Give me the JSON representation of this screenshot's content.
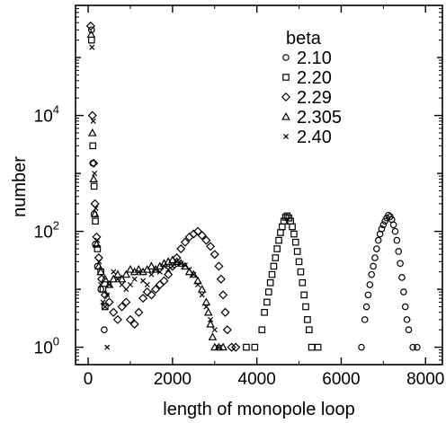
{
  "chart_data": {
    "type": "scatter",
    "title": "",
    "xlabel": "length of monopole loop",
    "ylabel": "number",
    "xlim": [
      -300,
      8400
    ],
    "ylim_log10": [
      -0.3,
      5.9
    ],
    "y_scale": "log",
    "x_ticks": [
      "0",
      "2000",
      "4000",
      "6000",
      "8000"
    ],
    "x_tick_values": [
      0,
      2000,
      4000,
      6000,
      8000
    ],
    "y_ticks": [
      {
        "base": "10",
        "exp": "0",
        "value": 1
      },
      {
        "base": "10",
        "exp": "2",
        "value": 100
      },
      {
        "base": "10",
        "exp": "4",
        "value": 10000
      }
    ],
    "legend": {
      "title": "beta",
      "position": "top-right"
    },
    "series": [
      {
        "name": "2.10",
        "marker": "circle",
        "points": [
          [
            80,
            300000
          ],
          [
            110,
            1500
          ],
          [
            140,
            200
          ],
          [
            170,
            60
          ],
          [
            220,
            25
          ],
          [
            300,
            10
          ],
          [
            380,
            2
          ],
          [
            6480,
            1
          ],
          [
            6560,
            3
          ],
          [
            6600,
            5
          ],
          [
            6640,
            8
          ],
          [
            6680,
            12
          ],
          [
            6720,
            18
          ],
          [
            6760,
            25
          ],
          [
            6800,
            35
          ],
          [
            6840,
            50
          ],
          [
            6880,
            70
          ],
          [
            6920,
            90
          ],
          [
            6960,
            110
          ],
          [
            7000,
            130
          ],
          [
            7040,
            150
          ],
          [
            7080,
            170
          ],
          [
            7120,
            190
          ],
          [
            7160,
            180
          ],
          [
            7200,
            160
          ],
          [
            7240,
            130
          ],
          [
            7280,
            100
          ],
          [
            7320,
            70
          ],
          [
            7360,
            45
          ],
          [
            7400,
            28
          ],
          [
            7440,
            16
          ],
          [
            7480,
            9
          ],
          [
            7520,
            5
          ],
          [
            7560,
            3
          ],
          [
            7600,
            2
          ],
          [
            7700,
            1
          ],
          [
            7800,
            1
          ]
        ]
      },
      {
        "name": "2.20",
        "marker": "square",
        "points": [
          [
            80,
            200000
          ],
          [
            110,
            3000
          ],
          [
            140,
            600
          ],
          [
            170,
            150
          ],
          [
            220,
            50
          ],
          [
            300,
            20
          ],
          [
            350,
            10
          ],
          [
            400,
            5
          ],
          [
            3750,
            1
          ],
          [
            3950,
            1
          ],
          [
            4120,
            2
          ],
          [
            4180,
            4
          ],
          [
            4240,
            6
          ],
          [
            4280,
            9
          ],
          [
            4320,
            13
          ],
          [
            4360,
            18
          ],
          [
            4400,
            25
          ],
          [
            4440,
            35
          ],
          [
            4480,
            50
          ],
          [
            4520,
            70
          ],
          [
            4560,
            95
          ],
          [
            4600,
            120
          ],
          [
            4640,
            150
          ],
          [
            4680,
            175
          ],
          [
            4720,
            185
          ],
          [
            4760,
            170
          ],
          [
            4800,
            150
          ],
          [
            4840,
            120
          ],
          [
            4880,
            90
          ],
          [
            4920,
            65
          ],
          [
            4960,
            45
          ],
          [
            5000,
            30
          ],
          [
            5040,
            20
          ],
          [
            5080,
            13
          ],
          [
            5120,
            8
          ],
          [
            5160,
            5
          ],
          [
            5200,
            3
          ],
          [
            5240,
            2
          ],
          [
            5300,
            1
          ],
          [
            5450,
            1
          ]
        ]
      },
      {
        "name": "2.29",
        "marker": "diamond",
        "points": [
          [
            60,
            350000
          ],
          [
            100,
            10000
          ],
          [
            130,
            1500
          ],
          [
            160,
            300
          ],
          [
            200,
            80
          ],
          [
            250,
            35
          ],
          [
            320,
            15
          ],
          [
            400,
            8
          ],
          [
            500,
            6
          ],
          [
            600,
            4
          ],
          [
            700,
            3
          ],
          [
            800,
            5
          ],
          [
            900,
            6
          ],
          [
            1000,
            3
          ],
          [
            1100,
            2.5
          ],
          [
            1200,
            4
          ],
          [
            1300,
            7
          ],
          [
            1400,
            9
          ],
          [
            1500,
            8
          ],
          [
            1600,
            10
          ],
          [
            1700,
            12
          ],
          [
            1800,
            14
          ],
          [
            1900,
            18
          ],
          [
            2000,
            25
          ],
          [
            2100,
            35
          ],
          [
            2200,
            50
          ],
          [
            2300,
            65
          ],
          [
            2400,
            80
          ],
          [
            2500,
            90
          ],
          [
            2600,
            100
          ],
          [
            2700,
            85
          ],
          [
            2800,
            70
          ],
          [
            2900,
            55
          ],
          [
            3000,
            40
          ],
          [
            3100,
            25
          ],
          [
            3150,
            15
          ],
          [
            3200,
            8
          ],
          [
            3250,
            4
          ],
          [
            3300,
            2
          ],
          [
            3400,
            1
          ],
          [
            3500,
            1
          ]
        ]
      },
      {
        "name": "2.305",
        "marker": "triangle",
        "points": [
          [
            70,
            250000
          ],
          [
            100,
            5000
          ],
          [
            130,
            800
          ],
          [
            160,
            200
          ],
          [
            200,
            60
          ],
          [
            250,
            25
          ],
          [
            300,
            20
          ],
          [
            400,
            15
          ],
          [
            500,
            12
          ],
          [
            600,
            15
          ],
          [
            700,
            18
          ],
          [
            800,
            15
          ],
          [
            900,
            18
          ],
          [
            1000,
            22
          ],
          [
            1100,
            20
          ],
          [
            1200,
            22
          ],
          [
            1300,
            20
          ],
          [
            1400,
            22
          ],
          [
            1500,
            25
          ],
          [
            1600,
            22
          ],
          [
            1700,
            25
          ],
          [
            1800,
            28
          ],
          [
            1900,
            30
          ],
          [
            2000,
            32
          ],
          [
            2100,
            30
          ],
          [
            2200,
            28
          ],
          [
            2300,
            25
          ],
          [
            2400,
            20
          ],
          [
            2500,
            18
          ],
          [
            2600,
            14
          ],
          [
            2700,
            10
          ],
          [
            2800,
            6
          ],
          [
            2850,
            4
          ],
          [
            2900,
            2.5
          ],
          [
            2950,
            1.5
          ],
          [
            3000,
            1
          ],
          [
            3100,
            1
          ],
          [
            3200,
            1
          ]
        ]
      },
      {
        "name": "2.40",
        "marker": "cross",
        "points": [
          [
            90,
            150000
          ],
          [
            120,
            8000
          ],
          [
            150,
            1000
          ],
          [
            180,
            250
          ],
          [
            220,
            70
          ],
          [
            260,
            30
          ],
          [
            300,
            12
          ],
          [
            350,
            6
          ],
          [
            400,
            5
          ],
          [
            450,
            8
          ],
          [
            500,
            12
          ],
          [
            600,
            20
          ],
          [
            700,
            15
          ],
          [
            800,
            12
          ],
          [
            900,
            10
          ],
          [
            1000,
            12
          ],
          [
            1100,
            15
          ],
          [
            1200,
            20
          ],
          [
            1300,
            14
          ],
          [
            1400,
            12
          ],
          [
            1500,
            18
          ],
          [
            1600,
            22
          ],
          [
            1700,
            20
          ],
          [
            1800,
            25
          ],
          [
            1900,
            22
          ],
          [
            2000,
            25
          ],
          [
            2100,
            30
          ],
          [
            2200,
            28
          ],
          [
            2300,
            26
          ],
          [
            2400,
            22
          ],
          [
            2500,
            18
          ],
          [
            2600,
            12
          ],
          [
            2700,
            8
          ],
          [
            2800,
            5
          ],
          [
            2900,
            3
          ],
          [
            3000,
            2
          ],
          [
            3100,
            1
          ],
          [
            450,
            1
          ]
        ]
      }
    ]
  }
}
